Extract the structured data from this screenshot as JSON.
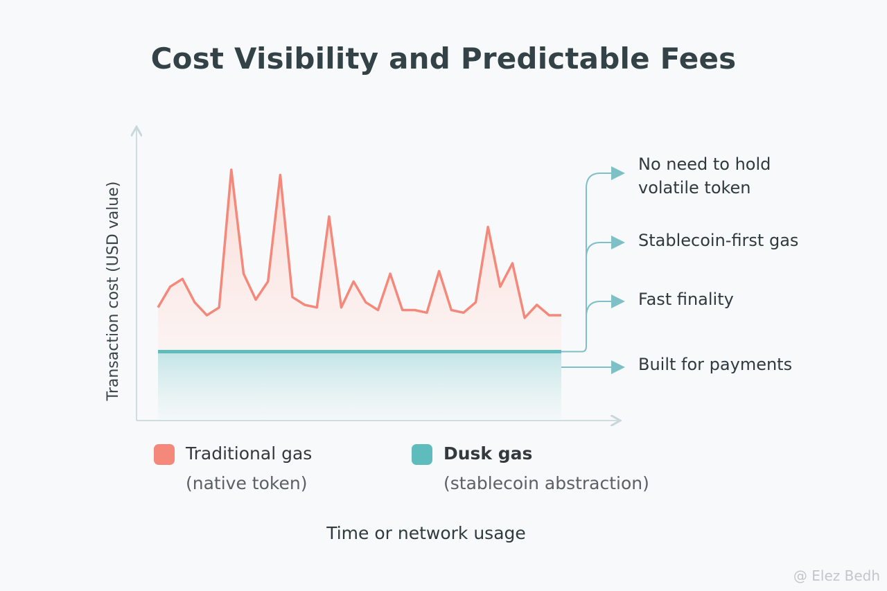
{
  "chart_data": {
    "type": "area",
    "title": "Cost Visibility and Predictable Fees",
    "xlabel": "Time or network usage",
    "ylabel": "Transaction cost (USD value)",
    "grid": false,
    "series": [
      {
        "name": "Traditional gas",
        "subtitle": "(native token)",
        "color": "#f4887a",
        "values": [
          0.43,
          0.51,
          0.54,
          0.45,
          0.4,
          0.43,
          0.96,
          0.56,
          0.46,
          0.53,
          0.94,
          0.47,
          0.44,
          0.43,
          0.78,
          0.43,
          0.53,
          0.45,
          0.42,
          0.56,
          0.42,
          0.42,
          0.41,
          0.57,
          0.42,
          0.41,
          0.45,
          0.74,
          0.51,
          0.6,
          0.39,
          0.44,
          0.4,
          0.4
        ]
      },
      {
        "name": "Dusk gas",
        "subtitle": "(stablecoin abstraction)",
        "color": "#5fbcbc",
        "values": [
          0.26,
          0.26
        ]
      }
    ]
  },
  "annotations": {
    "items": [
      "No need to hold\nvolatile token",
      "Stablecoin-first gas",
      "Fast finality",
      "Built for payments"
    ],
    "color": "#7fbfc6"
  },
  "watermark": "@ Elez Bedh"
}
